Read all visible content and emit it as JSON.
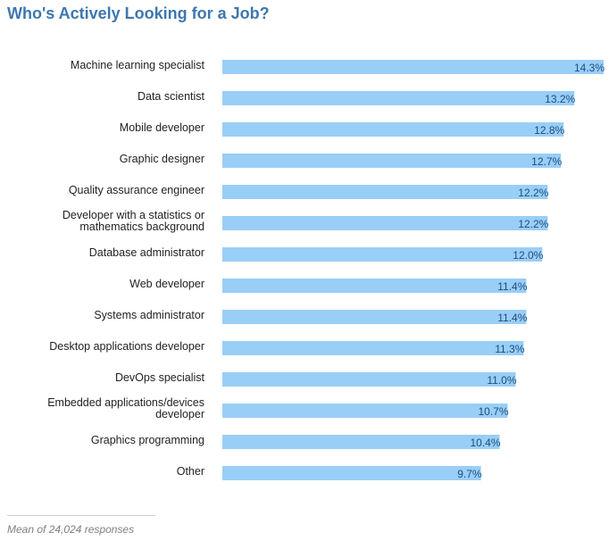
{
  "chart_data": {
    "type": "bar",
    "orientation": "horizontal",
    "title": "Who's Actively Looking for a Job?",
    "xlabel": "",
    "ylabel": "",
    "xlim": [
      0,
      14.3
    ],
    "grid": false,
    "value_suffix": "%",
    "bar_color": "#99cef7",
    "categories": [
      "Machine learning specialist",
      "Data scientist",
      "Mobile developer",
      "Graphic designer",
      "Quality assurance engineer",
      "Developer with a statistics or\nmathematics background",
      "Database administrator",
      "Web developer",
      "Systems administrator",
      "Desktop applications developer",
      "DevOps specialist",
      "Embedded applications/devices\ndeveloper",
      "Graphics programming",
      "Other"
    ],
    "values": [
      14.3,
      13.2,
      12.8,
      12.7,
      12.2,
      12.2,
      12.0,
      11.4,
      11.4,
      11.3,
      11.0,
      10.7,
      10.4,
      9.7
    ],
    "footnote": "Mean of 24,024 responses"
  }
}
